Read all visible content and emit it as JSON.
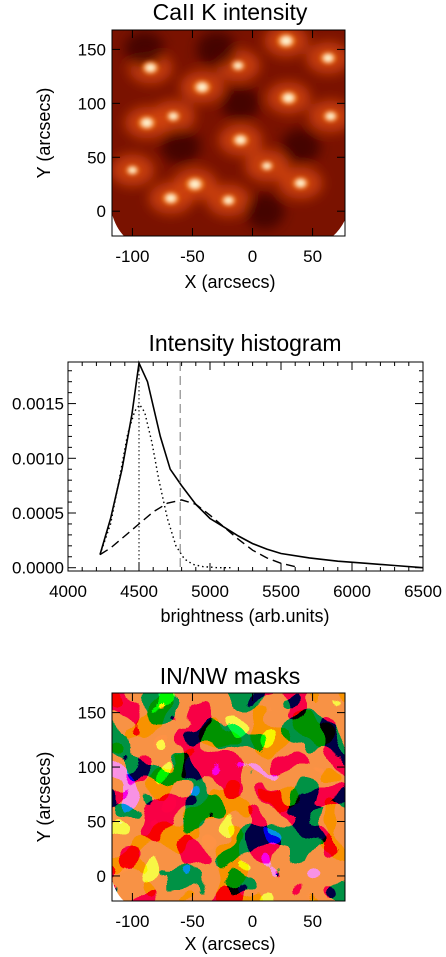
{
  "chart_data": [
    {
      "type": "heatmap",
      "title": "CaII K intensity",
      "xlabel": "X (arcsecs)",
      "ylabel": "Y (arcsecs)",
      "xlim": [
        -117,
        77
      ],
      "ylim": [
        -23,
        168
      ],
      "x_ticks": [
        "-100",
        "-50",
        "0",
        "50"
      ],
      "y_ticks": [
        "0",
        "50",
        "100",
        "150"
      ],
      "colormap": [
        "#2a0000",
        "#7a0d00",
        "#c23a00",
        "#f07a10",
        "#ffd27a",
        "#fffbe8"
      ],
      "bright_points": [
        {
          "x": -85,
          "y": 133,
          "intensity": 0.9
        },
        {
          "x": -88,
          "y": 82,
          "intensity": 0.95
        },
        {
          "x": -68,
          "y": 12,
          "intensity": 0.9
        },
        {
          "x": -48,
          "y": 25,
          "intensity": 1.0
        },
        {
          "x": -42,
          "y": 115,
          "intensity": 0.95
        },
        {
          "x": -10,
          "y": 66,
          "intensity": 0.9
        },
        {
          "x": 28,
          "y": 158,
          "intensity": 1.0
        },
        {
          "x": 30,
          "y": 105,
          "intensity": 0.95
        },
        {
          "x": 63,
          "y": 142,
          "intensity": 0.85
        },
        {
          "x": 65,
          "y": 88,
          "intensity": 0.8
        },
        {
          "x": 40,
          "y": 26,
          "intensity": 0.85
        },
        {
          "x": -20,
          "y": 10,
          "intensity": 0.8
        },
        {
          "x": -100,
          "y": 38,
          "intensity": 0.7
        },
        {
          "x": -66,
          "y": 88,
          "intensity": 0.75
        },
        {
          "x": -12,
          "y": 135,
          "intensity": 0.75
        },
        {
          "x": 12,
          "y": 42,
          "intensity": 0.7
        }
      ]
    },
    {
      "type": "line",
      "title": "Intensity histogram",
      "xlabel": "brightness (arb.units)",
      "ylabel": "",
      "xlim": [
        4000,
        6500
      ],
      "ylim": [
        -3e-05,
        0.00188
      ],
      "x_ticks": [
        4000,
        4500,
        5000,
        5500,
        6000,
        6500
      ],
      "y_ticks": [
        0.0,
        0.0005,
        0.001,
        0.0015
      ],
      "y_tick_labels": [
        "0.0000",
        "0.0005",
        "0.0010",
        "0.0015"
      ],
      "series": [
        {
          "style": "solid",
          "x": [
            4225,
            4300,
            4380,
            4450,
            4500,
            4560,
            4650,
            4720,
            4800,
            4900,
            5000,
            5100,
            5200,
            5300,
            5400,
            5500,
            5700,
            5900,
            6100,
            6300,
            6500
          ],
          "y": [
            0.00012,
            0.00045,
            0.0009,
            0.0014,
            0.00187,
            0.0017,
            0.0012,
            0.0009,
            0.00075,
            0.00058,
            0.00045,
            0.00037,
            0.00029,
            0.00022,
            0.00017,
            0.00013,
            9e-05,
            6e-05,
            4e-05,
            2e-05,
            0.0
          ]
        },
        {
          "style": "dotted",
          "x": [
            4225,
            4300,
            4360,
            4420,
            4470,
            4505,
            4540,
            4590,
            4640,
            4700,
            4760,
            4820,
            4880,
            4950,
            5050,
            5150
          ],
          "y": [
            0.00012,
            0.0004,
            0.0008,
            0.00122,
            0.00143,
            0.00149,
            0.00142,
            0.00115,
            0.0008,
            0.00045,
            0.0002,
            8e-05,
            3e-05,
            1e-05,
            0.0,
            0.0
          ]
        },
        {
          "style": "dashed",
          "x": [
            4225,
            4300,
            4400,
            4500,
            4600,
            4700,
            4800,
            4900,
            5000,
            5100,
            5200,
            5300,
            5400,
            5500,
            5600
          ],
          "y": [
            0.00012,
            0.00018,
            0.00029,
            0.0004,
            0.00051,
            0.00059,
            0.00062,
            0.00058,
            0.00048,
            0.00037,
            0.00026,
            0.00016,
            9e-05,
            4e-05,
            1e-05
          ]
        }
      ],
      "vlines": [
        {
          "x": 4500,
          "style": "dotted"
        },
        {
          "x": 4790,
          "style": "dashed"
        }
      ]
    },
    {
      "type": "heatmap",
      "title": "IN/NW masks",
      "xlabel": "X (arcsecs)",
      "ylabel": "Y (arcsecs)",
      "xlim": [
        -117,
        77
      ],
      "ylim": [
        -23,
        168
      ],
      "x_ticks": [
        "-100",
        "-50",
        "0",
        "50"
      ],
      "y_ticks": [
        "0",
        "50",
        "100",
        "150"
      ],
      "mask_colors": [
        "#000000",
        "#f04a10",
        "#fdebc8"
      ]
    }
  ]
}
